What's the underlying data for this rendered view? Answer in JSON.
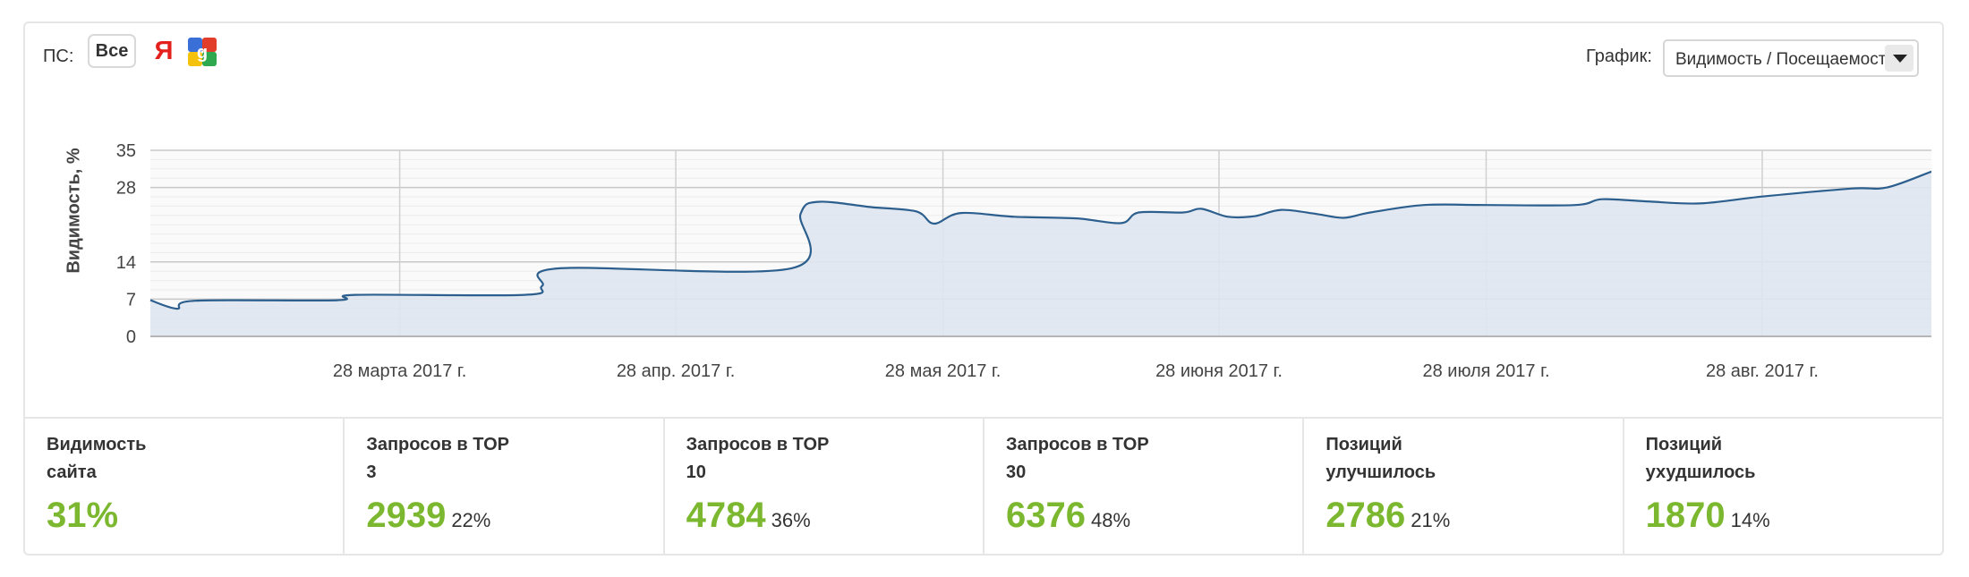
{
  "toolbar": {
    "ps_label": "ПС:",
    "ps_all_label": "Все",
    "yandex_glyph": "Я",
    "google_icon": "google-icon",
    "graph_label": "График:",
    "graph_select_value": "Видимость / Посещаемость"
  },
  "chart_data": {
    "type": "area",
    "ylabel": "Видимость, %",
    "yticks": [
      0,
      7,
      14,
      28,
      35
    ],
    "ylim": [
      0,
      35
    ],
    "x_range": [
      "2017-02-28",
      "2017-09-16"
    ],
    "xtick_labels": [
      {
        "date": "2017-03-28",
        "label": "28 марта 2017 г."
      },
      {
        "date": "2017-04-28",
        "label": "28 апр. 2017 г."
      },
      {
        "date": "2017-05-28",
        "label": "28 мая 2017 г."
      },
      {
        "date": "2017-06-28",
        "label": "28 июня 2017 г."
      },
      {
        "date": "2017-07-28",
        "label": "28 июля 2017 г."
      },
      {
        "date": "2017-08-28",
        "label": "28 авг. 2017 г."
      }
    ],
    "series": [
      {
        "color": "#2c5f8e",
        "fill": "#dfe6ef",
        "points": [
          [
            "2017-02-28",
            6.8
          ],
          [
            "2017-03-03",
            5.2
          ],
          [
            "2017-03-05",
            6.7
          ],
          [
            "2017-03-21",
            6.8
          ],
          [
            "2017-03-23",
            7.8
          ],
          [
            "2017-04-11",
            7.8
          ],
          [
            "2017-04-13",
            9.5
          ],
          [
            "2017-04-15",
            12.8
          ],
          [
            "2017-05-11",
            12.8
          ],
          [
            "2017-05-12",
            23
          ],
          [
            "2017-05-14",
            25.3
          ],
          [
            "2017-05-20",
            24.3
          ],
          [
            "2017-05-25",
            23.5
          ],
          [
            "2017-05-27",
            21.2
          ],
          [
            "2017-05-30",
            23.2
          ],
          [
            "2017-06-05",
            22.5
          ],
          [
            "2017-06-12",
            22.2
          ],
          [
            "2017-06-17",
            21.3
          ],
          [
            "2017-06-19",
            23.3
          ],
          [
            "2017-06-24",
            23.3
          ],
          [
            "2017-06-26",
            24
          ],
          [
            "2017-06-29",
            22.5
          ],
          [
            "2017-07-02",
            22.6
          ],
          [
            "2017-07-05",
            23.8
          ],
          [
            "2017-07-09",
            23
          ],
          [
            "2017-07-12",
            22.3
          ],
          [
            "2017-07-15",
            23.3
          ],
          [
            "2017-07-21",
            24.7
          ],
          [
            "2017-07-28",
            24.7
          ],
          [
            "2017-08-07",
            24.7
          ],
          [
            "2017-08-10",
            25.8
          ],
          [
            "2017-08-15",
            25.4
          ],
          [
            "2017-08-21",
            25
          ],
          [
            "2017-08-28",
            26.3
          ],
          [
            "2017-09-07",
            27.8
          ],
          [
            "2017-09-11",
            28
          ],
          [
            "2017-09-16",
            31
          ]
        ]
      }
    ],
    "grid": true
  },
  "stats": [
    {
      "label": "Видимость сайта",
      "value": "31%",
      "pct": ""
    },
    {
      "label": "Запросов в TOP 3",
      "value": "2939",
      "pct": "22%"
    },
    {
      "label": "Запросов в TOP 10",
      "value": "4784",
      "pct": "36%"
    },
    {
      "label": "Запросов в TOP 30",
      "value": "6376",
      "pct": "48%"
    },
    {
      "label": "Позиций улучшилось",
      "value": "2786",
      "pct": "21%"
    },
    {
      "label": "Позиций ухудшилось",
      "value": "1870",
      "pct": "14%"
    }
  ],
  "colors": {
    "accent_green": "#7cb82f",
    "line": "#2c5f8e",
    "area": "#dfe6ef",
    "yandex_red": "#e3201b"
  }
}
